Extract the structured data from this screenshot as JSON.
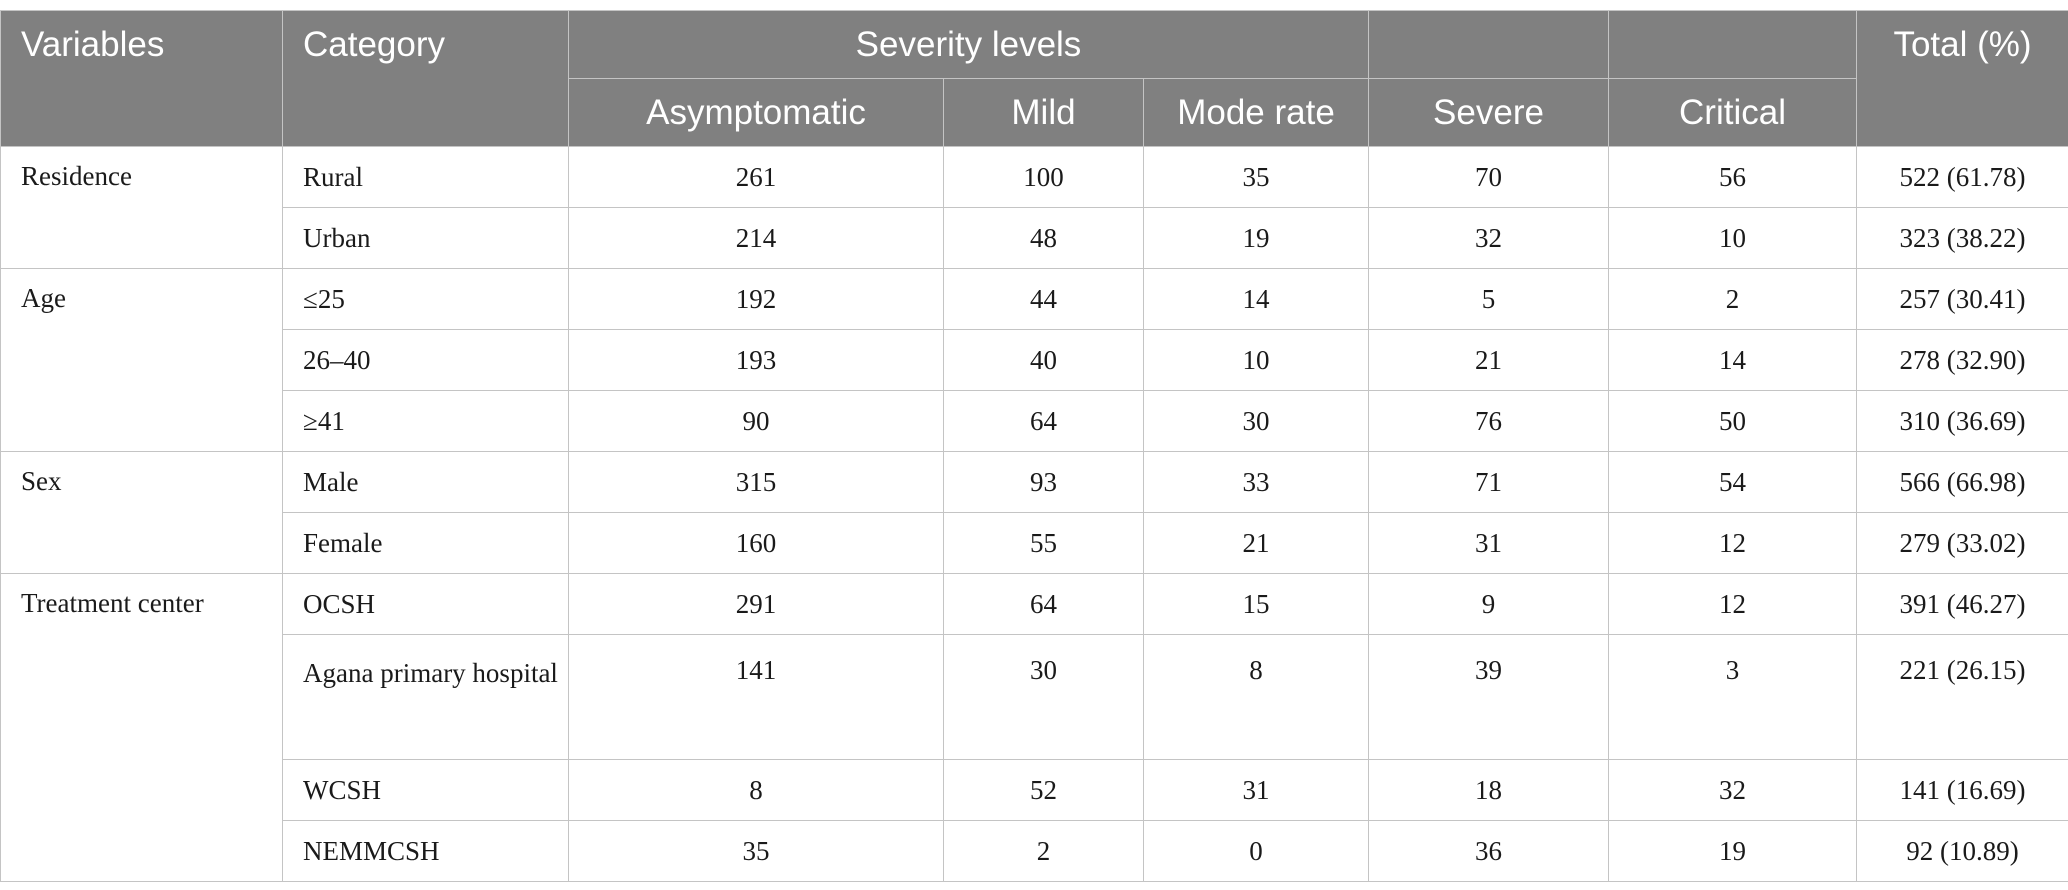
{
  "header": {
    "variables": "Variables",
    "category": "Category",
    "severity_levels": "Severity levels",
    "total": "Total (%)",
    "columns": [
      "Asymptomatic",
      "Mild",
      "Mode rate",
      "Severe",
      "Critical"
    ]
  },
  "rows": [
    {
      "variable": "Residence",
      "category": "Rural",
      "values": [
        "261",
        "100",
        "35",
        "70",
        "56"
      ],
      "total": "522 (61.78)"
    },
    {
      "variable": "",
      "category": "Urban",
      "values": [
        "214",
        "48",
        "19",
        "32",
        "10"
      ],
      "total": "323 (38.22)"
    },
    {
      "variable": "Age",
      "category": "≤25",
      "values": [
        "192",
        "44",
        "14",
        "5",
        "2"
      ],
      "total": "257 (30.41)"
    },
    {
      "variable": "",
      "category": "26–40",
      "values": [
        "193",
        "40",
        "10",
        "21",
        "14"
      ],
      "total": "278 (32.90)"
    },
    {
      "variable": "",
      "category": "≥41",
      "values": [
        "90",
        "64",
        "30",
        "76",
        "50"
      ],
      "total": "310 (36.69)"
    },
    {
      "variable": "Sex",
      "category": "Male",
      "values": [
        "315",
        "93",
        "33",
        "71",
        "54"
      ],
      "total": "566 (66.98)"
    },
    {
      "variable": "",
      "category": "Female",
      "values": [
        "160",
        "55",
        "21",
        "31",
        "12"
      ],
      "total": "279 (33.02)"
    },
    {
      "variable": "Treatment center",
      "category": "OCSH",
      "values": [
        "291",
        "64",
        "15",
        "9",
        "12"
      ],
      "total": "391 (46.27)"
    },
    {
      "variable": "",
      "category": "Agana primary hospital",
      "values": [
        "141",
        "30",
        "8",
        "39",
        "3"
      ],
      "total": "221 (26.15)"
    },
    {
      "variable": "",
      "category": "WCSH",
      "values": [
        "8",
        "52",
        "31",
        "18",
        "32"
      ],
      "total": "141 (16.69)"
    },
    {
      "variable": "",
      "category": "NEMMCSH",
      "values": [
        "35",
        "2",
        "0",
        "36",
        "19"
      ],
      "total": "92 (10.89)"
    }
  ]
}
